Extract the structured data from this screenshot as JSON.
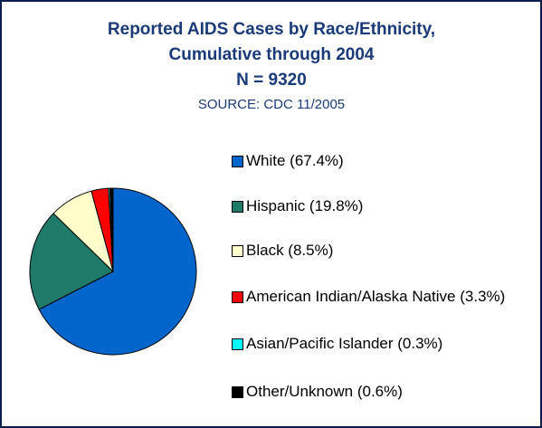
{
  "chart_data": {
    "type": "pie",
    "title": [
      "Reported AIDS Cases by Race/Ethnicity,",
      "Cumulative through 2004",
      "N = 9320"
    ],
    "subtitle": "SOURCE: CDC 11/2005",
    "categories": [
      "White (67.4%)",
      "Hispanic (19.8%)",
      "Black (8.5%)",
      "American Indian/Alaska Native (3.3%)",
      "Asian/Pacific Islander (0.3%)",
      "Other/Unknown (0.6%)"
    ],
    "values": [
      67.4,
      19.8,
      8.5,
      3.3,
      0.3,
      0.6
    ],
    "colors": [
      "#0066cc",
      "#1f7a6a",
      "#ffffcc",
      "#ff0000",
      "#00ffff",
      "#000000"
    ],
    "legend": "right"
  }
}
